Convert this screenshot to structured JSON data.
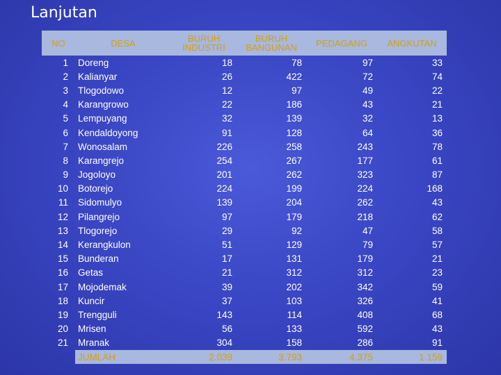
{
  "title": "Lanjutan",
  "headers": {
    "no": "NO",
    "desa": "DESA",
    "buruh_industri_1": "BURUH",
    "buruh_industri_2": "INDUSTRI",
    "buruh_bangunan_1": "BURUH",
    "buruh_bangunan_2": "BANGUNAN",
    "pedagang": "PEDAGANG",
    "angkutan": "ANGKUTAN"
  },
  "rows": [
    [
      "1",
      "Doreng",
      "18",
      "78",
      "97",
      "33"
    ],
    [
      "2",
      "Kalianyar",
      "26",
      "422",
      "72",
      "74"
    ],
    [
      "3",
      "Tlogodowo",
      "12",
      "97",
      "49",
      "22"
    ],
    [
      "4",
      "Karangrowo",
      "22",
      "186",
      "43",
      "21"
    ],
    [
      "5",
      "Lempuyang",
      "32",
      "139",
      "32",
      "13"
    ],
    [
      "6",
      "Kendaldoyong",
      "91",
      "128",
      "64",
      "36"
    ],
    [
      "7",
      "Wonosalam",
      "226",
      "258",
      "243",
      "78"
    ],
    [
      "8",
      "Karangrejo",
      "254",
      "267",
      "177",
      "61"
    ],
    [
      "9",
      "Jogoloyo",
      "201",
      "262",
      "323",
      "87"
    ],
    [
      "10",
      "Botorejo",
      "224",
      "199",
      "224",
      "168"
    ],
    [
      "11",
      "Sidomulyo",
      "139",
      "204",
      "262",
      "43"
    ],
    [
      "12",
      "Pilangrejo",
      "97",
      "179",
      "218",
      "62"
    ],
    [
      "13",
      "Tlogorejo",
      "29",
      "92",
      "47",
      "58"
    ],
    [
      "14",
      "Kerangkulon",
      "51",
      "129",
      "79",
      "57"
    ],
    [
      "15",
      "Bunderan",
      "17",
      "131",
      "179",
      "21"
    ],
    [
      "16",
      "Getas",
      "21",
      "312",
      "312",
      "23"
    ],
    [
      "17",
      "Mojodemak",
      "39",
      "202",
      "342",
      "59"
    ],
    [
      "18",
      "Kuncir",
      "37",
      "103",
      "326",
      "41"
    ],
    [
      "19",
      "Trengguli",
      "143",
      "114",
      "408",
      "68"
    ],
    [
      "20",
      "Mrisen",
      "56",
      "133",
      "592",
      "43"
    ],
    [
      "21",
      "Mranak",
      "304",
      "158",
      "286",
      "91"
    ]
  ],
  "total": {
    "label": "JUMLAH",
    "buruh_industri": "2.039",
    "buruh_bangunan": "3.793",
    "pedagang": "4.375",
    "angkutan": "1.159"
  },
  "colors": {
    "header_band": "#a8b8de",
    "header_text": "#d4a010",
    "background": "#3a46c4"
  }
}
